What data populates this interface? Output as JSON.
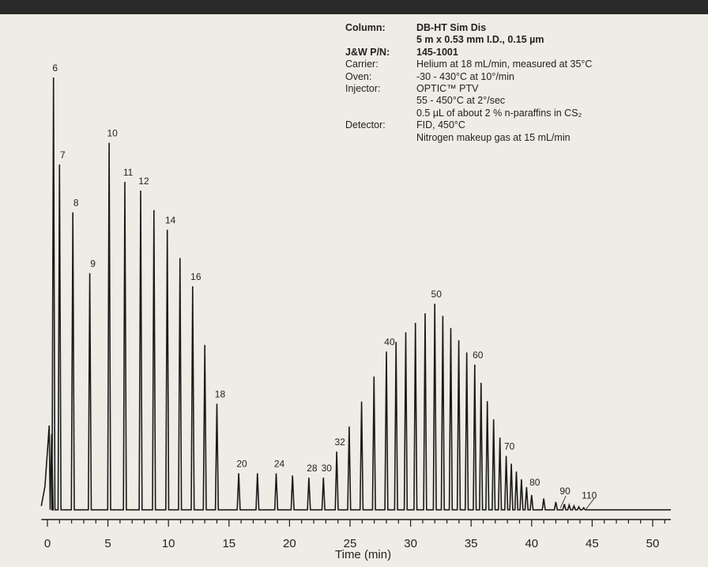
{
  "header": {
    "rows": [
      {
        "label": "Column:",
        "value": "DB-HT Sim Dis",
        "bold": true
      },
      {
        "label": "",
        "value": "5 m x 0.53 mm I.D., 0.15 µm",
        "bold": true
      },
      {
        "label": "J&W P/N:",
        "value": "145-1001",
        "bold": true
      },
      {
        "label": "Carrier:",
        "value": "Helium at 18 mL/min, measured at 35°C",
        "bold": false
      },
      {
        "label": "Oven:",
        "value": "-30 - 430°C at 10°/min",
        "bold": false
      },
      {
        "label": "Injector:",
        "value": "OPTIC™ PTV",
        "bold": false
      },
      {
        "label": "",
        "value": "55 - 450°C at 2°/sec",
        "bold": false
      },
      {
        "label": "",
        "value": "0.5 µL of about 2 % n-paraffins in CS₂",
        "bold": false
      },
      {
        "label": "Detector:",
        "value": "FID, 450°C",
        "bold": false
      },
      {
        "label": "",
        "value": "Nitrogen makeup gas at 15 mL/min",
        "bold": false
      }
    ]
  },
  "chart_data": {
    "type": "line",
    "xlabel": "Time (min)",
    "xlim": [
      -0.5,
      51.5
    ],
    "ylim": [
      0,
      100
    ],
    "x_ticks": [
      0,
      5,
      10,
      15,
      20,
      25,
      30,
      35,
      40,
      45,
      50
    ],
    "peaks": [
      {
        "label": "6",
        "t": 0.5,
        "h": 100
      },
      {
        "label": "7",
        "t": 1.0,
        "h": 80
      },
      {
        "label": "8",
        "t": 2.1,
        "h": 69
      },
      {
        "label": "9",
        "t": 3.5,
        "h": 55
      },
      {
        "label": "10",
        "t": 5.1,
        "h": 85
      },
      {
        "label": "11",
        "t": 6.4,
        "h": 76
      },
      {
        "label": "12",
        "t": 7.7,
        "h": 74
      },
      {
        "label": "14",
        "t": 9.9,
        "h": 65
      },
      {
        "label": "16",
        "t": 12.0,
        "h": 52
      },
      {
        "label": "18",
        "t": 14.0,
        "h": 25
      },
      {
        "label": "20",
        "t": 15.8,
        "h": 9
      },
      {
        "label": "24",
        "t": 18.9,
        "h": 9
      },
      {
        "label": "28",
        "t": 21.6,
        "h": 8
      },
      {
        "label": "30",
        "t": 22.8,
        "h": 8
      },
      {
        "label": "32",
        "t": 23.9,
        "h": 14
      },
      {
        "label": "40",
        "t": 28.0,
        "h": 37
      },
      {
        "label": "50",
        "t": 32.0,
        "h": 48
      },
      {
        "label": "60",
        "t": 35.3,
        "h": 34
      },
      {
        "label": "70",
        "t": 37.9,
        "h": 13
      },
      {
        "label": "80",
        "t": 40.0,
        "h": 4
      },
      {
        "label": "90",
        "t": 42.5,
        "h": 2
      },
      {
        "label": "110",
        "t": 44.5,
        "h": 1
      }
    ]
  }
}
